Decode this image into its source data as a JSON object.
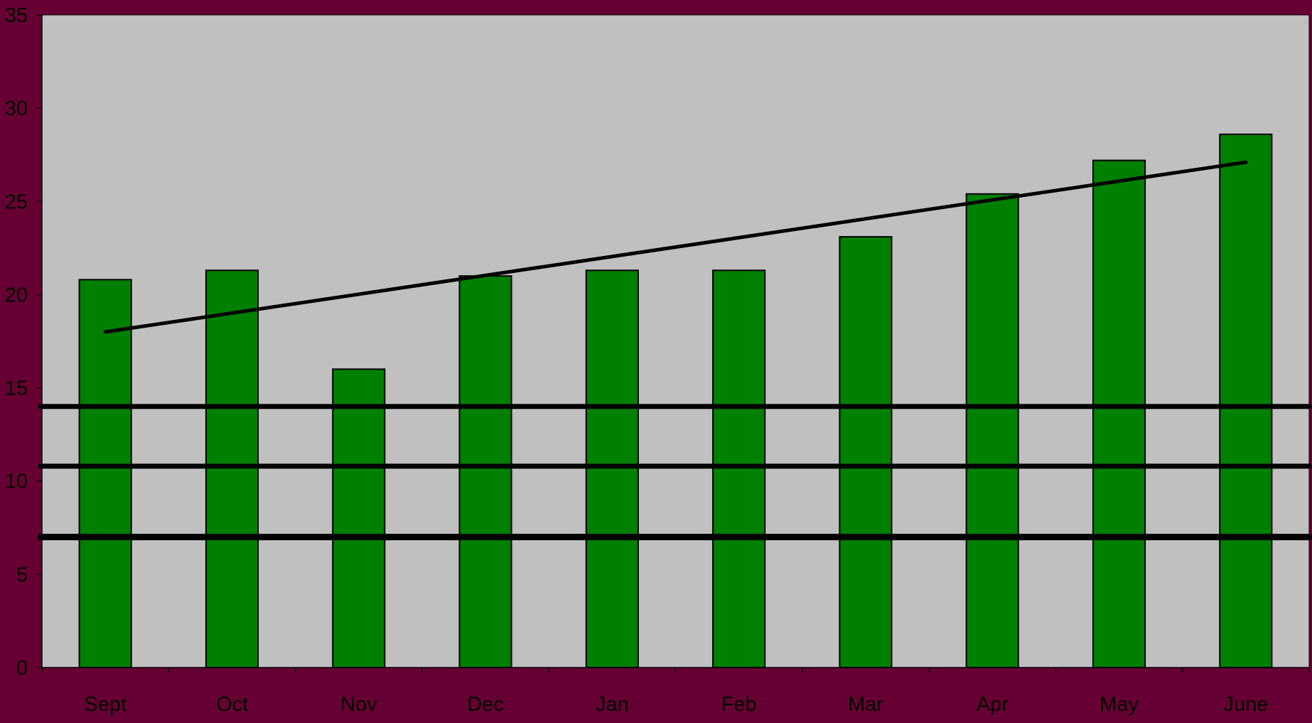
{
  "chart_data": {
    "type": "bar",
    "categories": [
      "Sept",
      "Oct",
      "Nov",
      "Dec",
      "Jan",
      "Feb",
      "Mar",
      "Apr",
      "May",
      "June"
    ],
    "series": [
      {
        "values": [
          20.8,
          21.3,
          16.0,
          21.0,
          21.3,
          21.3,
          23.1,
          25.4,
          27.2,
          28.6
        ]
      }
    ],
    "trendline": {
      "type": "linear",
      "start": 18.0,
      "end": 27.1
    },
    "reference_lines": [
      14.0,
      10.8,
      7.0
    ],
    "ylim": [
      0,
      35
    ],
    "yticks": [
      0,
      5,
      10,
      15,
      20,
      25,
      30,
      35
    ],
    "ytick_labels": [
      "0",
      "5",
      "10",
      "15",
      "20",
      "25",
      "30",
      "35"
    ],
    "title": "",
    "xlabel": "",
    "ylabel": "",
    "legend": "none",
    "grid": false,
    "colors": {
      "background": "#660033",
      "plot_area": "#c0c0c0",
      "bar": "#008000",
      "bar_edge": "#000000",
      "lines": "#000000"
    }
  }
}
